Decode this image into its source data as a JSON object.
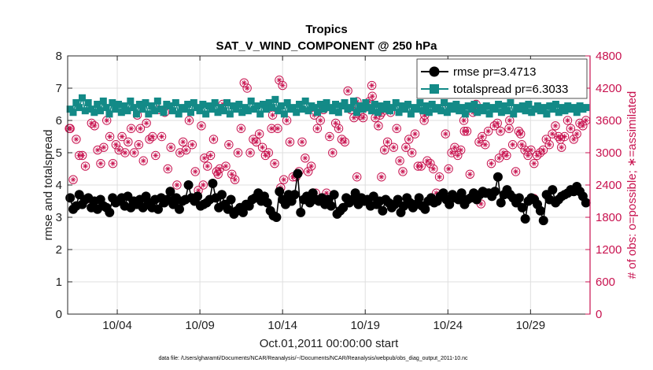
{
  "chart_data": {
    "type": "line",
    "title": "Tropics",
    "subtitle": "SAT_V_WIND_COMPONENT @ 250 hPa",
    "xlabel": "Oct.01,2011 00:00:00 start",
    "ylabel": "rmse and totalspread",
    "y2label": "# of obs: o=possible; ∗=assimilated",
    "footnote": "data file: /Users/gharamti/Documents/NCAR/Reanalysis/~/Documents/NCAR/Reanalysis/webpub/obs_diag_output_2011-10.nc",
    "xlim": [
      1,
      32.6
    ],
    "ylim": [
      0,
      8
    ],
    "y2lim": [
      0,
      4800
    ],
    "xticks": [
      {
        "value": 4,
        "label": "10/04"
      },
      {
        "value": 9,
        "label": "10/09"
      },
      {
        "value": 14,
        "label": "10/14"
      },
      {
        "value": 19,
        "label": "10/19"
      },
      {
        "value": 24,
        "label": "10/24"
      },
      {
        "value": 29,
        "label": "10/29"
      }
    ],
    "yticks": [
      "0",
      "1",
      "2",
      "3",
      "4",
      "5",
      "6",
      "7",
      "8"
    ],
    "y2ticks": [
      "0",
      "600",
      "1200",
      "1800",
      "2400",
      "3000",
      "3600",
      "4200",
      "4800"
    ],
    "legend": {
      "position": "top-right",
      "entries": [
        "rmse pr=3.4713",
        "totalspread pr=6.3033"
      ]
    },
    "colors": {
      "rmse": "#000000",
      "totalspread": "#138a87",
      "obs": "#c8124f"
    },
    "series": [
      {
        "name": "rmse",
        "axis": "left",
        "values": [
          3.6,
          3.25,
          3.35,
          3.7,
          3.4,
          3.55,
          3.6,
          3.3,
          3.5,
          3.25,
          3.55,
          3.35,
          3.3,
          3.15,
          3.6,
          3.45,
          3.5,
          3.6,
          3.35,
          3.65,
          3.3,
          3.5,
          3.4,
          3.55,
          3.3,
          3.65,
          3.45,
          3.3,
          3.55,
          3.25,
          3.6,
          3.45,
          3.55,
          3.8,
          3.4,
          3.6,
          3.25,
          3.5,
          3.55,
          4.0,
          3.6,
          3.5,
          3.65,
          3.35,
          3.4,
          3.45,
          3.55,
          4.05,
          3.6,
          3.3,
          3.7,
          3.4,
          3.25,
          3.55,
          3.1,
          3.2,
          3.3,
          3.15,
          3.4,
          3.35,
          3.55,
          3.6,
          3.75,
          3.5,
          3.65,
          3.45,
          3.2,
          3.05,
          3.0,
          3.8,
          3.55,
          3.4,
          3.7,
          3.5,
          3.7,
          4.35,
          3.15,
          3.55,
          3.65,
          3.45,
          3.75,
          3.55,
          3.5,
          3.6,
          3.4,
          3.55,
          3.35,
          3.7,
          3.1,
          3.2,
          3.3,
          3.6,
          3.45,
          3.55,
          3.75,
          3.4,
          3.6,
          3.5,
          3.55,
          3.35,
          3.65,
          3.4,
          3.5,
          3.2,
          3.55,
          3.45,
          3.3,
          3.4,
          3.55,
          3.15,
          3.35,
          3.6,
          3.45,
          3.3,
          3.4,
          3.6,
          3.35,
          3.25,
          3.5,
          3.6,
          3.45,
          3.5,
          3.65,
          3.75,
          3.55,
          3.4,
          3.7,
          3.6,
          3.55,
          3.75,
          3.4,
          3.55,
          3.6,
          3.75,
          3.55,
          3.7,
          3.8,
          3.75,
          3.75,
          3.65,
          3.8,
          4.25,
          3.45,
          3.7,
          3.85,
          3.7,
          3.6,
          3.45,
          3.6,
          3.3,
          2.95,
          3.5,
          3.6,
          3.55,
          3.4,
          3.2,
          2.9,
          3.7,
          3.55,
          3.85,
          3.45,
          3.55,
          3.65,
          3.7,
          3.75,
          3.85,
          3.8,
          3.95,
          3.8,
          3.65,
          3.45
        ]
      },
      {
        "name": "totalspread",
        "axis": "left",
        "values": [
          6.35,
          6.25,
          6.55,
          6.4,
          6.7,
          6.3,
          6.55,
          6.35,
          6.25,
          6.5,
          6.3,
          6.6,
          6.4,
          6.2,
          6.55,
          6.35,
          6.5,
          6.25,
          6.45,
          6.3,
          6.6,
          6.4,
          6.2,
          6.5,
          6.35,
          6.55,
          6.2,
          6.45,
          6.3,
          6.6,
          6.35,
          6.25,
          6.5,
          6.45,
          6.3,
          6.55,
          6.2,
          6.4,
          6.35,
          6.5,
          6.25,
          6.55,
          6.4,
          6.3,
          6.5,
          6.2,
          6.45,
          6.35,
          6.55,
          6.25,
          6.4,
          6.3,
          6.55,
          6.2,
          6.45,
          6.35,
          6.5,
          6.25,
          6.4,
          6.3,
          6.6,
          6.35,
          6.45,
          6.2,
          6.5,
          6.35,
          6.55,
          6.4,
          6.65,
          6.3,
          6.45,
          6.2,
          6.55,
          6.35,
          6.4,
          6.25,
          6.5,
          6.35,
          6.6,
          6.3,
          6.45,
          6.4,
          6.25,
          6.5,
          6.35,
          6.55,
          6.4,
          6.3,
          6.5,
          6.25,
          6.45,
          6.55,
          6.35,
          6.4,
          6.6,
          6.25,
          6.45,
          6.35,
          6.55,
          6.4,
          6.3,
          6.5,
          6.25,
          6.45,
          6.35,
          6.5,
          6.3,
          6.4,
          6.55,
          6.25,
          6.45,
          6.35,
          6.5,
          6.2,
          6.4,
          6.35,
          6.55,
          6.3,
          6.45,
          6.25,
          6.5,
          6.35,
          6.4,
          6.3,
          6.55,
          6.25,
          6.45,
          6.35,
          6.5,
          6.3,
          6.4,
          6.2,
          6.45,
          6.35,
          6.5,
          6.25,
          6.4,
          6.3,
          6.45,
          6.2,
          6.4,
          6.35,
          6.5,
          6.25,
          6.45,
          6.3,
          6.55,
          6.2,
          6.4,
          6.35,
          6.45,
          6.3,
          6.5,
          6.25,
          6.35,
          6.45,
          6.3,
          6.4,
          6.2,
          6.45,
          6.35,
          6.5,
          6.25,
          6.4,
          6.3,
          6.45,
          6.35,
          6.4,
          6.25,
          6.45,
          6.35,
          6.4
        ]
      },
      {
        "name": "obs_assimilated",
        "axis": "right",
        "values": [
          3450,
          2500,
          3250,
          2950,
          2950,
          2750,
          2150,
          3550,
          3500,
          3050,
          2800,
          3100,
          3600,
          3300,
          2800,
          3150,
          3050,
          3300,
          3000,
          3200,
          3450,
          3000,
          3700,
          3450,
          2850,
          3550,
          3250,
          3300,
          2950,
          3800,
          3300,
          3750,
          2700,
          3100,
          2050,
          2400,
          3000,
          3200,
          3050,
          3600,
          3150,
          2650,
          2300,
          3500,
          2900,
          2750,
          2950,
          3250,
          2650,
          2700,
          3900,
          2750,
          3150,
          2600,
          2500,
          3000,
          3450,
          4300,
          4200,
          3000,
          3250,
          3200,
          3350,
          3100,
          2950,
          3000,
          3450,
          2800,
          3450,
          2350,
          2500,
          3600,
          3200,
          2550,
          2550,
          2650,
          3200,
          2900,
          2650,
          2750,
          3700,
          3450,
          3600,
          3800,
          2250,
          3300,
          3000,
          3550,
          3450,
          3250,
          3200,
          4150,
          3800,
          3650,
          3950,
          3700,
          3650,
          3850,
          3950,
          4050,
          3650,
          3500,
          2550,
          3050,
          3200,
          3750,
          3100,
          3450,
          2850,
          2650,
          3100,
          3250,
          3000,
          3350,
          2750,
          2750,
          3600,
          2850,
          2800,
          2700,
          2250,
          2550,
          3800,
          3350,
          2700,
          3000,
          3100,
          2950,
          3050,
          3600,
          3400,
          2600,
          3750,
          3900,
          3200,
          3300,
          3150,
          3400,
          2800,
          3500,
          3550,
          3400,
          3000,
          2950,
          3600,
          3150,
          2650,
          3400,
          3150,
          3050,
          2950,
          3050,
          2800,
          2950,
          3000,
          3050,
          3250,
          3150,
          3350,
          3500,
          3300,
          3100,
          3300,
          3600,
          3450,
          3250,
          3350,
          3550,
          3500,
          3600
        ]
      },
      {
        "name": "obs_possible_extra",
        "axis": "right",
        "points": [
          [
            1.1,
            3450
          ],
          [
            5.3,
            3150
          ],
          [
            9.2,
            2400
          ],
          [
            10.1,
            2600
          ],
          [
            13.4,
            3700
          ],
          [
            13.8,
            4350
          ],
          [
            14.0,
            4250
          ],
          [
            16.0,
            2250
          ],
          [
            18.5,
            2550
          ],
          [
            19.4,
            4250
          ],
          [
            19.9,
            3700
          ],
          [
            20.0,
            3750
          ],
          [
            22.6,
            3700
          ],
          [
            25.0,
            3400
          ],
          [
            26.0,
            2050
          ],
          [
            27.1,
            2900
          ],
          [
            27.7,
            3450
          ],
          [
            28.4,
            3350
          ],
          [
            29.2,
            2150
          ],
          [
            30.8,
            3250
          ]
        ]
      }
    ]
  }
}
